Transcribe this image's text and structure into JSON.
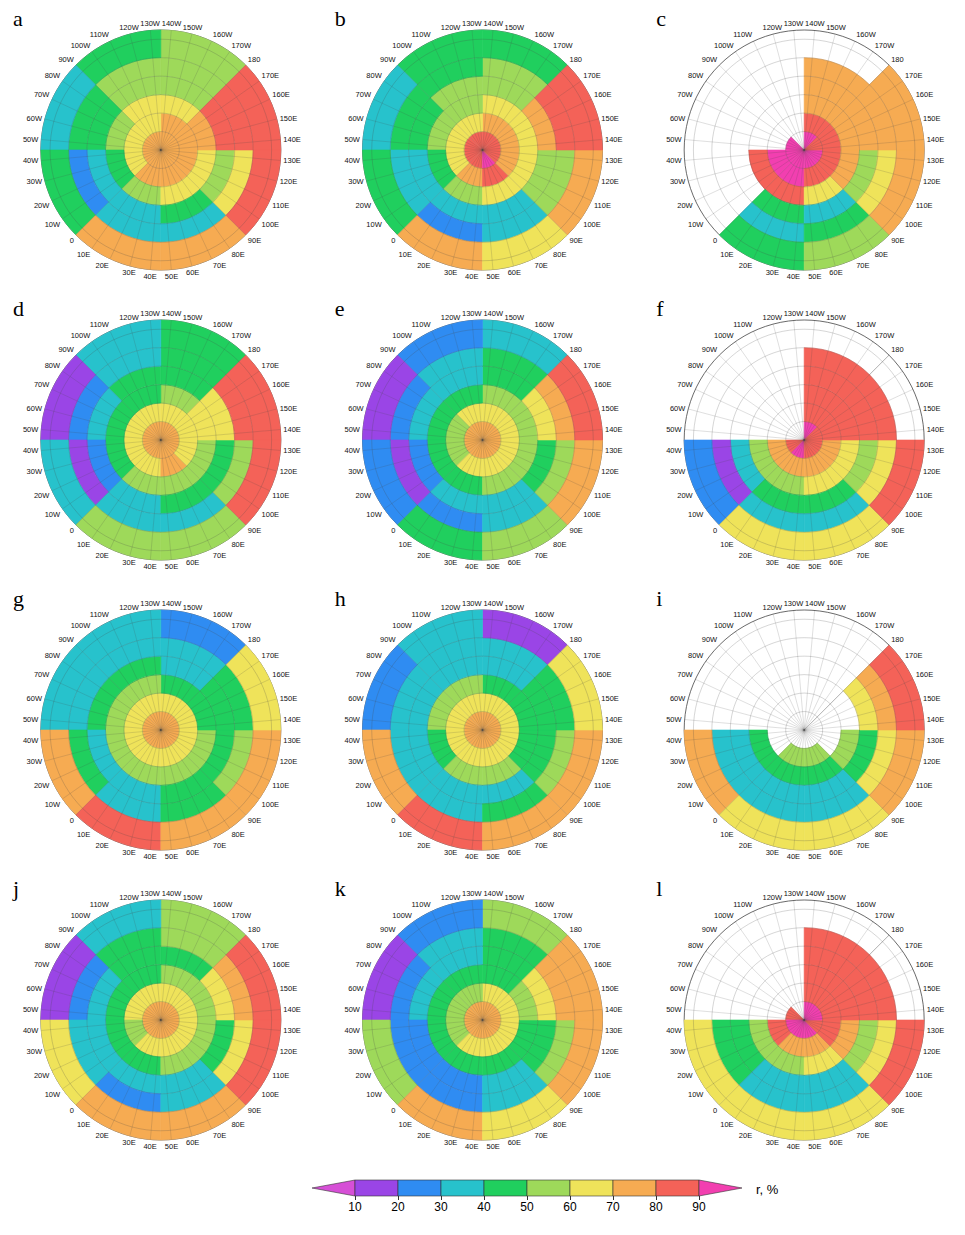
{
  "chart_data": {
    "type": "polar_heatmap",
    "grid": true,
    "tick_labels": "x",
    "xlim": [
      -180,
      180
    ],
    "xticks": [
      {
        "value": -170,
        "label": "170W"
      },
      {
        "value": -160,
        "label": "160W"
      },
      {
        "value": -150,
        "label": "150W"
      },
      {
        "value": -140,
        "label": "140W"
      },
      {
        "value": -130,
        "label": "130W"
      },
      {
        "value": -120,
        "label": "120W"
      },
      {
        "value": -110,
        "label": "110W"
      },
      {
        "value": -100,
        "label": "100W"
      },
      {
        "value": -90,
        "label": "90W"
      },
      {
        "value": -80,
        "label": "80W"
      },
      {
        "value": -70,
        "label": "70W"
      },
      {
        "value": -60,
        "label": "60W"
      },
      {
        "value": -50,
        "label": "50W"
      },
      {
        "value": -40,
        "label": "40W"
      },
      {
        "value": -30,
        "label": "30W"
      },
      {
        "value": -20,
        "label": "20W"
      },
      {
        "value": -10,
        "label": "10W"
      },
      0,
      {
        "value": 10,
        "label": "10E"
      },
      {
        "value": 20,
        "label": "20E"
      },
      {
        "value": 30,
        "label": "30E"
      },
      {
        "value": 40,
        "label": "40E"
      },
      {
        "value": 50,
        "label": "50E"
      },
      {
        "value": 60,
        "label": "60E"
      },
      {
        "value": 70,
        "label": "70E"
      },
      {
        "value": 80,
        "label": "80E"
      },
      {
        "value": 90,
        "label": "90E"
      },
      {
        "value": 100,
        "label": "100E"
      },
      {
        "value": 110,
        "label": "110E"
      },
      {
        "value": 120,
        "label": "120E"
      },
      {
        "value": 130,
        "label": "130E"
      },
      {
        "value": 140,
        "label": "140E"
      },
      {
        "value": 150,
        "label": "150E"
      },
      {
        "value": 160,
        "label": "160E"
      },
      {
        "value": 170,
        "label": "170E"
      },
      180
    ],
    "ylim": [
      90,
      25
    ],
    "yticks": [
      80,
      70,
      60,
      50,
      40,
      30
    ],
    "lat_edges": [
      90,
      80,
      70,
      60,
      50,
      40,
      25
    ],
    "lon_edges": [
      -180,
      -135,
      -90,
      -45,
      0,
      45,
      90,
      135,
      180
    ],
    "panels": [
      {
        "label": "a",
        "cells": [
          [
            78,
            78,
            76,
            74,
            76,
            78,
            78,
            78
          ],
          [
            70,
            68,
            62,
            60,
            72,
            75,
            72,
            72
          ],
          [
            62,
            60,
            55,
            45,
            55,
            65,
            65,
            72
          ],
          [
            58,
            55,
            45,
            30,
            38,
            42,
            55,
            82
          ],
          [
            55,
            50,
            40,
            28,
            30,
            35,
            60,
            85
          ],
          [
            50,
            45,
            35,
            40,
            75,
            75,
            80,
            85
          ]
        ]
      },
      {
        "label": "b",
        "cells": [
          [
            85,
            85,
            88,
            85,
            88,
            90,
            85,
            85
          ],
          [
            70,
            65,
            65,
            68,
            75,
            80,
            72,
            70
          ],
          [
            60,
            55,
            50,
            40,
            55,
            60,
            62,
            68
          ],
          [
            55,
            50,
            45,
            35,
            30,
            35,
            50,
            75
          ],
          [
            50,
            45,
            40,
            30,
            25,
            30,
            55,
            80
          ],
          [
            45,
            40,
            35,
            40,
            70,
            65,
            75,
            80
          ]
        ]
      },
      {
        "label": "c",
        "cells": [
          [
            92,
            null,
            92,
            95,
            95,
            92,
            90,
            88
          ],
          [
            80,
            null,
            null,
            92,
            92,
            85,
            80,
            80
          ],
          [
            75,
            null,
            null,
            85,
            80,
            60,
            70,
            78
          ],
          [
            75,
            null,
            null,
            null,
            40,
            35,
            50,
            75
          ],
          [
            75,
            null,
            null,
            null,
            30,
            45,
            60,
            75
          ],
          [
            null,
            null,
            null,
            null,
            40,
            55,
            70,
            75
          ]
        ]
      },
      {
        "label": "d",
        "cells": [
          [
            75,
            75,
            75,
            75,
            75,
            78,
            75,
            75
          ],
          [
            65,
            62,
            62,
            60,
            65,
            70,
            68,
            68
          ],
          [
            50,
            48,
            45,
            45,
            50,
            55,
            55,
            60
          ],
          [
            45,
            40,
            30,
            20,
            35,
            40,
            45,
            65
          ],
          [
            45,
            35,
            25,
            15,
            30,
            35,
            55,
            80
          ],
          [
            40,
            30,
            15,
            30,
            50,
            55,
            80,
            82
          ]
        ]
      },
      {
        "label": "e",
        "cells": [
          [
            75,
            72,
            72,
            72,
            72,
            75,
            72,
            72
          ],
          [
            62,
            60,
            58,
            55,
            62,
            65,
            65,
            65
          ],
          [
            50,
            45,
            42,
            40,
            45,
            50,
            52,
            58
          ],
          [
            42,
            38,
            30,
            25,
            30,
            35,
            42,
            62
          ],
          [
            40,
            30,
            20,
            15,
            28,
            30,
            50,
            78
          ],
          [
            35,
            25,
            15,
            25,
            45,
            50,
            75,
            80
          ]
        ]
      },
      {
        "label": "f",
        "cells": [
          [
            92,
            null,
            null,
            88,
            90,
            88,
            85,
            88
          ],
          [
            85,
            null,
            null,
            75,
            72,
            70,
            78,
            85
          ],
          [
            85,
            null,
            null,
            50,
            55,
            60,
            65,
            82
          ],
          [
            85,
            null,
            null,
            30,
            45,
            40,
            50,
            80
          ],
          [
            85,
            null,
            null,
            15,
            35,
            35,
            60,
            85
          ],
          [
            null,
            null,
            null,
            20,
            60,
            65,
            80,
            null
          ]
        ]
      },
      {
        "label": "g",
        "cells": [
          [
            72,
            70,
            70,
            70,
            72,
            72,
            72,
            72
          ],
          [
            60,
            62,
            65,
            60,
            68,
            65,
            62,
            60
          ],
          [
            45,
            50,
            55,
            50,
            55,
            55,
            50,
            45
          ],
          [
            35,
            40,
            40,
            35,
            35,
            40,
            45,
            40
          ],
          [
            30,
            30,
            35,
            40,
            35,
            45,
            55,
            45
          ],
          [
            20,
            35,
            30,
            75,
            85,
            70,
            75,
            60
          ]
        ]
      },
      {
        "label": "h",
        "cells": [
          [
            72,
            70,
            70,
            70,
            72,
            72,
            72,
            72
          ],
          [
            60,
            62,
            62,
            60,
            65,
            62,
            60,
            60
          ],
          [
            45,
            50,
            50,
            48,
            50,
            50,
            48,
            45
          ],
          [
            35,
            38,
            38,
            32,
            32,
            38,
            42,
            40
          ],
          [
            30,
            30,
            30,
            35,
            35,
            40,
            55,
            45
          ],
          [
            15,
            30,
            25,
            75,
            80,
            70,
            70,
            60
          ]
        ]
      },
      {
        "label": "i",
        "cells": [
          [
            null,
            null,
            null,
            null,
            null,
            null,
            null,
            null
          ],
          [
            null,
            null,
            null,
            null,
            50,
            55,
            null,
            null
          ],
          [
            null,
            null,
            null,
            40,
            40,
            45,
            50,
            null
          ],
          [
            null,
            null,
            null,
            30,
            30,
            30,
            45,
            60
          ],
          [
            null,
            null,
            null,
            35,
            35,
            30,
            60,
            75
          ],
          [
            null,
            null,
            null,
            70,
            65,
            60,
            75,
            80
          ]
        ]
      },
      {
        "label": "j",
        "cells": [
          [
            75,
            75,
            75,
            75,
            75,
            75,
            75,
            75
          ],
          [
            62,
            62,
            60,
            58,
            65,
            68,
            65,
            65
          ],
          [
            50,
            48,
            45,
            45,
            48,
            52,
            52,
            55
          ],
          [
            45,
            40,
            35,
            30,
            30,
            35,
            45,
            65
          ],
          [
            50,
            40,
            25,
            30,
            25,
            35,
            60,
            78
          ],
          [
            55,
            30,
            15,
            60,
            75,
            70,
            80,
            80
          ]
        ]
      },
      {
        "label": "k",
        "cells": [
          [
            72,
            72,
            72,
            72,
            72,
            72,
            72,
            72
          ],
          [
            60,
            58,
            58,
            55,
            62,
            65,
            62,
            62
          ],
          [
            48,
            45,
            42,
            42,
            45,
            48,
            48,
            52
          ],
          [
            42,
            38,
            32,
            28,
            28,
            32,
            42,
            62
          ],
          [
            45,
            35,
            22,
            28,
            25,
            32,
            58,
            75
          ],
          [
            50,
            28,
            15,
            55,
            72,
            68,
            78,
            78
          ]
        ]
      },
      {
        "label": "l",
        "cells": [
          [
            92,
            null,
            88,
            90,
            90,
            90,
            88,
            90
          ],
          [
            85,
            null,
            null,
            80,
            75,
            72,
            80,
            85
          ],
          [
            85,
            null,
            null,
            55,
            50,
            60,
            70,
            85
          ],
          [
            85,
            null,
            null,
            40,
            35,
            35,
            50,
            85
          ],
          [
            85,
            null,
            null,
            45,
            30,
            35,
            60,
            85
          ],
          [
            null,
            null,
            null,
            65,
            65,
            60,
            80,
            null
          ]
        ]
      }
    ],
    "colorbar": {
      "label": "r, %",
      "ticks": [
        10,
        20,
        30,
        40,
        50,
        60,
        70,
        80,
        90
      ],
      "colors": [
        "#d64fd6",
        "#9a45e6",
        "#2f8cf2",
        "#27c2cc",
        "#20cf5e",
        "#9ed95a",
        "#efe35a",
        "#f6ab52",
        "#f46258",
        "#f23fb0"
      ]
    }
  }
}
